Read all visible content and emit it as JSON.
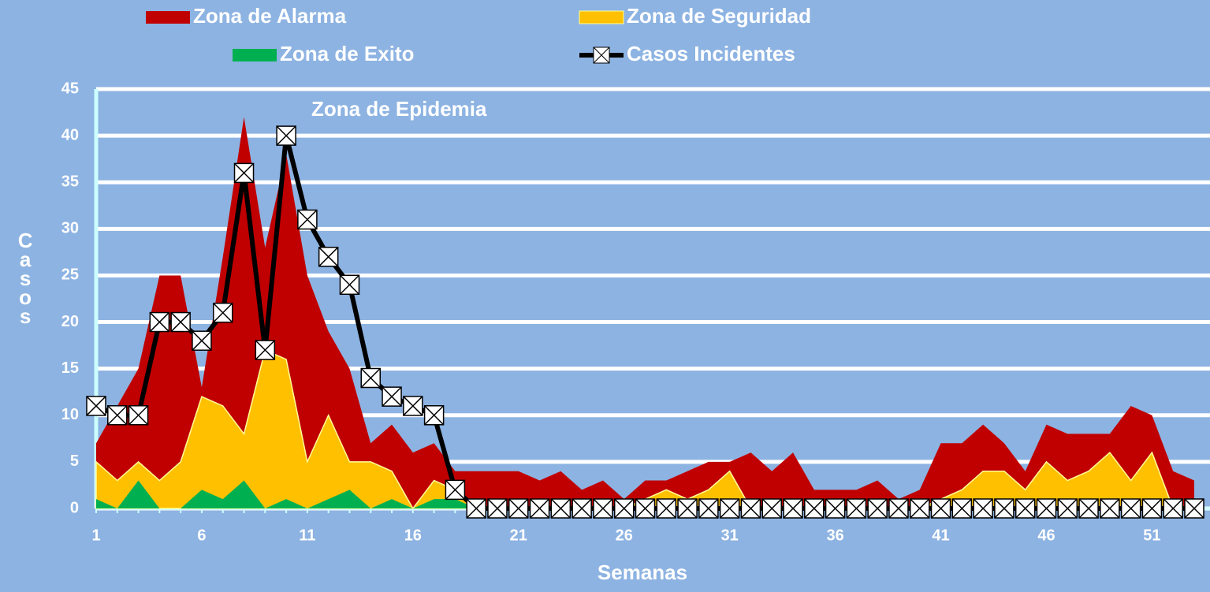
{
  "chart_data": {
    "type": "area",
    "annotation": "Zona de Epidemia",
    "x_label": "Semanas",
    "y_label": "Casos",
    "categories": [
      "1",
      null,
      null,
      null,
      null,
      "6",
      null,
      null,
      null,
      null,
      "11",
      null,
      null,
      null,
      null,
      "16",
      null,
      null,
      null,
      null,
      "21",
      null,
      null,
      null,
      null,
      "26",
      null,
      null,
      null,
      null,
      "31",
      null,
      null,
      null,
      null,
      "36",
      null,
      null,
      null,
      null,
      "41",
      null,
      null,
      null,
      null,
      "46",
      null,
      null,
      null,
      null,
      "51",
      null,
      null
    ],
    "ylim": [
      0,
      45
    ],
    "yticks": [
      0,
      5,
      10,
      15,
      20,
      25,
      30,
      35,
      40,
      45
    ],
    "grid": true,
    "legend": "top",
    "series": [
      {
        "name": "Zona de Alarma",
        "color": "#c00000",
        "values": [
          7,
          11,
          15,
          25,
          25,
          13,
          27,
          42,
          28,
          38,
          25,
          19,
          15,
          7,
          9,
          6,
          7,
          4,
          4,
          4,
          4,
          3,
          4,
          2,
          3,
          1,
          3,
          3,
          4,
          5,
          5,
          6,
          4,
          6,
          2,
          2,
          2,
          3,
          1,
          2,
          7,
          7,
          9,
          7,
          4,
          9,
          8,
          8,
          8,
          11,
          10,
          4,
          3
        ]
      },
      {
        "name": "Zona de Seguridad",
        "color": "#ffc000",
        "values": [
          5,
          3,
          5,
          3,
          5,
          12,
          11,
          8,
          17,
          16,
          5,
          10,
          5,
          5,
          4,
          0,
          3,
          2,
          0,
          0,
          0,
          0,
          0,
          0,
          0,
          0,
          1,
          2,
          1,
          2,
          4,
          0,
          0,
          0,
          0,
          0,
          0,
          0,
          0,
          0,
          1,
          2,
          4,
          4,
          2,
          5,
          3,
          4,
          6,
          3,
          6,
          0,
          0
        ]
      },
      {
        "name": "Zona de Exito",
        "color": "#00b050",
        "values": [
          1,
          0,
          3,
          0,
          0,
          2,
          1,
          3,
          0,
          1,
          0,
          1,
          2,
          0,
          1,
          0,
          1,
          1,
          0,
          0,
          0,
          0,
          0,
          0,
          0,
          0,
          0,
          0,
          0,
          0,
          0,
          0,
          0,
          0,
          0,
          0,
          0,
          0,
          0,
          0,
          0,
          0,
          0,
          0,
          0,
          0,
          0,
          0,
          0,
          0,
          0,
          0,
          0
        ]
      },
      {
        "name": "Casos Incidentes",
        "type": "line",
        "color": "#000000",
        "values": [
          11,
          10,
          10,
          20,
          20,
          18,
          21,
          36,
          17,
          40,
          31,
          27,
          24,
          14,
          12,
          11,
          10,
          2,
          0,
          0,
          0,
          0,
          0,
          0,
          0,
          0,
          0,
          0,
          0,
          0,
          0,
          0,
          0,
          0,
          0,
          0,
          0,
          0,
          0,
          0,
          0,
          0,
          0,
          0,
          0,
          0,
          0,
          0,
          0,
          0,
          0,
          0,
          0
        ]
      }
    ]
  }
}
